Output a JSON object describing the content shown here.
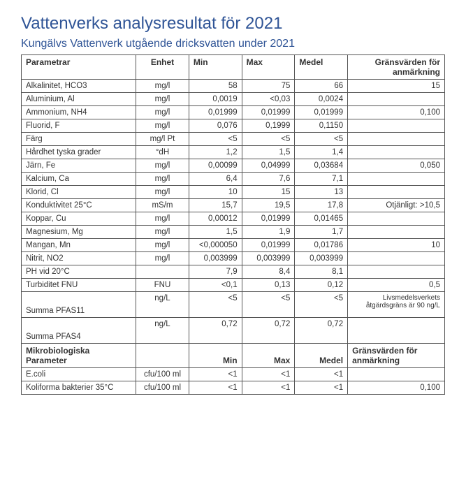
{
  "title": "Vattenverks analysresultat för 2021",
  "subtitle": "Kungälvs Vattenverk utgående dricksvatten under 2021",
  "headers": {
    "param": "Parametrar",
    "unit": "Enhet",
    "min": "Min",
    "max": "Max",
    "mean": "Medel",
    "limit": "Gränsvärden för anmärkning"
  },
  "rows": [
    {
      "param": "Alkalinitet, HCO3",
      "unit": "mg/l",
      "min": "58",
      "max": "75",
      "mean": "66",
      "limit": "15"
    },
    {
      "param": "Aluminium, Al",
      "unit": "mg/l",
      "min": "0,0019",
      "max": "<0,03",
      "mean": "0,0024",
      "limit": ""
    },
    {
      "param": "Ammonium, NH4",
      "unit": "mg/l",
      "min": "0,01999",
      "max": "0,01999",
      "mean": "0,01999",
      "limit": "0,100"
    },
    {
      "param": "Fluorid, F",
      "unit": "mg/l",
      "min": "0,076",
      "max": "0,1999",
      "mean": "0,1150",
      "limit": ""
    },
    {
      "param": "Färg",
      "unit": "mg/l Pt",
      "min": "<5",
      "max": "<5",
      "mean": "<5",
      "limit": ""
    },
    {
      "param": "Hårdhet tyska grader",
      "unit": "°dH",
      "min": "1,2",
      "max": "1,5",
      "mean": "1,4",
      "limit": ""
    },
    {
      "param": "Järn, Fe",
      "unit": "mg/l",
      "min": "0,00099",
      "max": "0,04999",
      "mean": "0,03684",
      "limit": "0,050"
    },
    {
      "param": "Kalcium, Ca",
      "unit": "mg/l",
      "min": "6,4",
      "max": "7,6",
      "mean": "7,1",
      "limit": ""
    },
    {
      "param": "Klorid, Cl",
      "unit": "mg/l",
      "min": "10",
      "max": "15",
      "mean": "13",
      "limit": ""
    },
    {
      "param": "Konduktivitet 25°C",
      "unit": "mS/m",
      "min": "15,7",
      "max": "19,5",
      "mean": "17,8",
      "limit": "Otjänligt: >10,5"
    },
    {
      "param": "Koppar, Cu",
      "unit": "mg/l",
      "min": "0,00012",
      "max": "0,01999",
      "mean": "0,01465",
      "limit": ""
    },
    {
      "param": "Magnesium, Mg",
      "unit": "mg/l",
      "min": "1,5",
      "max": "1,9",
      "mean": "1,7",
      "limit": ""
    },
    {
      "param": "Mangan, Mn",
      "unit": "mg/l",
      "min": "<0,000050",
      "max": "0,01999",
      "mean": "0,01786",
      "limit": "10"
    },
    {
      "param": "Nitrit, NO2",
      "unit": "mg/l",
      "min": "0,003999",
      "max": "0,003999",
      "mean": "0,003999",
      "limit": ""
    },
    {
      "param": "PH vid 20°C",
      "unit": "",
      "min": "7,9",
      "max": "8,4",
      "mean": "8,1",
      "limit": ""
    },
    {
      "param": "Turbiditet FNU",
      "unit": "FNU",
      "min": "<0,1",
      "max": "0,13",
      "mean": "0,12",
      "limit": "0,5"
    }
  ],
  "pfas": [
    {
      "param": "Summa PFAS11",
      "unit": "ng/L",
      "min": "<5",
      "max": "<5",
      "mean": "<5",
      "limit": "Livsmedelsverkets åtgärdsgräns är 90 ng/L"
    },
    {
      "param": "Summa PFAS4",
      "unit": "ng/L",
      "min": "0,72",
      "max": "0,72",
      "mean": "0,72",
      "limit": ""
    }
  ],
  "micro_header": {
    "param": "Mikrobiologiska Parameter",
    "min": "Min",
    "max": "Max",
    "mean": "Medel",
    "limit": "Gränsvärden för anmärkning"
  },
  "micro_rows": [
    {
      "param": "E.coli",
      "unit": "cfu/100 ml",
      "min": "<1",
      "max": "<1",
      "mean": "<1",
      "limit": ""
    },
    {
      "param": "Koliforma bakterier 35°C",
      "unit": "cfu/100 ml",
      "min": "<1",
      "max": "<1",
      "mean": "<1",
      "limit": "0,100"
    }
  ]
}
